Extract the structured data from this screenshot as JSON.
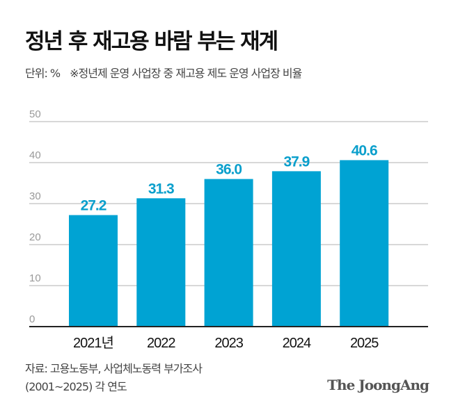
{
  "title": "정년 후 재고용 바람 부는 재계",
  "unit": "단위: %",
  "note": "※정년제 운영 사업장 중 재고용 제도 운영 사업장 비율",
  "source_line1": "자료: 고용노동부, 사업체노동력 부가조사",
  "source_line2": "(2001~2025) 각 연도",
  "logo": "The JoongAng",
  "colors": {
    "bar": "#00a3d3",
    "label": "#0a9fcc",
    "grid": "#cccccc",
    "axis": "#222222"
  },
  "chart_data": {
    "type": "bar",
    "categories": [
      "2021년",
      "2022",
      "2023",
      "2024",
      "2025"
    ],
    "values": [
      27.2,
      31.3,
      36.0,
      37.9,
      40.6
    ],
    "value_labels": [
      "27.2",
      "31.3",
      "36.0",
      "37.9",
      "40.6"
    ],
    "yticks": [
      "0",
      "10",
      "20",
      "30",
      "40",
      "50"
    ],
    "ylim": [
      0,
      50
    ],
    "grid": true
  }
}
